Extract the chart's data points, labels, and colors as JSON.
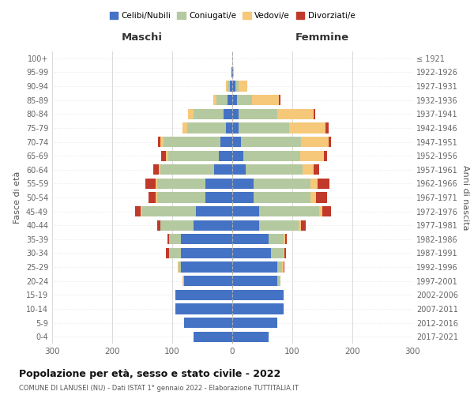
{
  "age_groups": [
    "0-4",
    "5-9",
    "10-14",
    "15-19",
    "20-24",
    "25-29",
    "30-34",
    "35-39",
    "40-44",
    "45-49",
    "50-54",
    "55-59",
    "60-64",
    "65-69",
    "70-74",
    "75-79",
    "80-84",
    "85-89",
    "90-94",
    "95-99",
    "100+"
  ],
  "birth_years": [
    "2017-2021",
    "2012-2016",
    "2007-2011",
    "2002-2006",
    "1997-2001",
    "1992-1996",
    "1987-1991",
    "1982-1986",
    "1977-1981",
    "1972-1976",
    "1967-1971",
    "1962-1966",
    "1957-1961",
    "1952-1956",
    "1947-1951",
    "1942-1946",
    "1937-1941",
    "1932-1936",
    "1927-1931",
    "1922-1926",
    "≤ 1921"
  ],
  "maschi": {
    "celibi": [
      65,
      80,
      95,
      95,
      80,
      85,
      85,
      85,
      65,
      60,
      45,
      45,
      30,
      22,
      20,
      10,
      14,
      8,
      4,
      1,
      0
    ],
    "coniugati": [
      0,
      0,
      0,
      0,
      2,
      5,
      20,
      20,
      55,
      90,
      80,
      80,
      90,
      85,
      95,
      65,
      50,
      18,
      4,
      0,
      0
    ],
    "vedovi": [
      0,
      0,
      0,
      0,
      1,
      1,
      0,
      0,
      0,
      2,
      2,
      2,
      3,
      3,
      5,
      8,
      10,
      5,
      3,
      0,
      0
    ],
    "divorziati": [
      0,
      0,
      0,
      0,
      0,
      0,
      5,
      3,
      5,
      10,
      12,
      18,
      8,
      8,
      4,
      0,
      0,
      0,
      0,
      0,
      0
    ]
  },
  "femmine": {
    "nubili": [
      60,
      75,
      85,
      85,
      75,
      75,
      65,
      60,
      45,
      45,
      35,
      35,
      22,
      18,
      15,
      10,
      10,
      8,
      5,
      1,
      0
    ],
    "coniugate": [
      0,
      0,
      0,
      0,
      5,
      8,
      20,
      25,
      65,
      100,
      95,
      95,
      95,
      95,
      100,
      85,
      65,
      25,
      5,
      0,
      0
    ],
    "vedove": [
      0,
      0,
      0,
      0,
      0,
      2,
      2,
      3,
      5,
      5,
      10,
      12,
      18,
      40,
      45,
      60,
      60,
      45,
      15,
      2,
      0
    ],
    "divorziate": [
      0,
      0,
      0,
      0,
      0,
      2,
      2,
      3,
      8,
      15,
      18,
      20,
      10,
      5,
      5,
      5,
      3,
      2,
      0,
      0,
      0
    ]
  },
  "colors": {
    "celibi": "#4472c4",
    "coniugati": "#b5c9a0",
    "vedovi": "#f5c87a",
    "divorziati": "#c0392b"
  },
  "title": "Popolazione per età, sesso e stato civile - 2022",
  "subtitle": "COMUNE DI LANUSEI (NU) - Dati ISTAT 1° gennaio 2022 - Elaborazione TUTTITALIA.IT",
  "xlabel_left": "Maschi",
  "xlabel_right": "Femmine",
  "ylabel_left": "Fasce di età",
  "ylabel_right": "Anni di nascita",
  "xlim": 300,
  "legend_labels": [
    "Celibi/Nubili",
    "Coniugati/e",
    "Vedovi/e",
    "Divorziati/e"
  ]
}
